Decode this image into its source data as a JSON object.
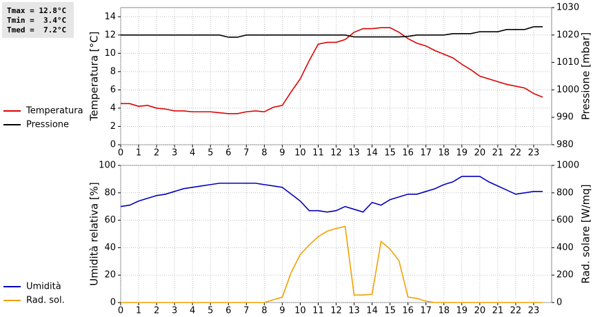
{
  "stats": [
    "Tmax = 12.8°C",
    "Tmin =  3.4°C",
    "Tmed =  7.2°C"
  ],
  "chart_data": [
    {
      "type": "line",
      "ylabel": "Temperatura [°C]",
      "y2label": "Pressione [mbar]",
      "x": [
        0,
        0.5,
        1,
        1.5,
        2,
        2.5,
        3,
        3.5,
        4,
        4.5,
        5,
        5.5,
        6,
        6.5,
        7,
        7.5,
        8,
        8.5,
        9,
        9.5,
        10,
        10.5,
        11,
        11.5,
        12,
        12.5,
        13,
        13.5,
        14,
        14.5,
        15,
        15.5,
        16,
        16.5,
        17,
        17.5,
        18,
        18.5,
        19,
        19.5,
        20,
        20.5,
        21,
        21.5,
        22,
        22.5,
        23,
        23.5
      ],
      "series": [
        {
          "name": "Temperatura",
          "color": "#dd0000",
          "axis": "y",
          "values": [
            4.5,
            4.5,
            4.2,
            4.3,
            4.0,
            3.9,
            3.7,
            3.7,
            3.6,
            3.6,
            3.6,
            3.5,
            3.4,
            3.4,
            3.6,
            3.7,
            3.6,
            4.1,
            4.3,
            5.8,
            7.2,
            9.2,
            11.0,
            11.2,
            11.2,
            11.5,
            12.3,
            12.7,
            12.7,
            12.8,
            12.8,
            12.3,
            11.6,
            11.1,
            10.8,
            10.3,
            9.9,
            9.5,
            8.8,
            8.2,
            7.5,
            7.2,
            6.9,
            6.6,
            6.4,
            6.2,
            5.6,
            5.2
          ]
        },
        {
          "name": "Pressione",
          "color": "#000000",
          "axis": "y2",
          "values": [
            1020,
            1020,
            1020,
            1020,
            1020,
            1020,
            1020,
            1020,
            1020,
            1020,
            1020,
            1020,
            1019.2,
            1019.2,
            1020,
            1020,
            1020,
            1020,
            1020,
            1020,
            1020,
            1020,
            1020,
            1020,
            1020,
            1020,
            1019.3,
            1019.3,
            1019.3,
            1019.3,
            1019.3,
            1019.3,
            1019.5,
            1020,
            1020,
            1020,
            1020,
            1020.5,
            1020.5,
            1020.5,
            1021.2,
            1021.2,
            1021.2,
            1022,
            1022,
            1022,
            1023,
            1023
          ]
        }
      ],
      "xlim": [
        0,
        24
      ],
      "xticks": [
        0,
        1,
        2,
        3,
        4,
        5,
        6,
        7,
        8,
        9,
        10,
        11,
        12,
        13,
        14,
        15,
        16,
        17,
        18,
        19,
        20,
        21,
        22,
        23
      ],
      "ylim": [
        0,
        15
      ],
      "yticks": [
        0,
        2,
        4,
        6,
        8,
        10,
        12,
        14
      ],
      "y2lim": [
        980,
        1030
      ],
      "y2ticks": [
        980,
        990,
        1000,
        1010,
        1020,
        1030
      ],
      "grid": true
    },
    {
      "type": "line",
      "ylabel": "Umidità relativa [%]",
      "y2label": "Rad. solare [W/mq]",
      "x": [
        0,
        0.5,
        1,
        1.5,
        2,
        2.5,
        3,
        3.5,
        4,
        4.5,
        5,
        5.5,
        6,
        6.5,
        7,
        7.5,
        8,
        8.5,
        9,
        9.5,
        10,
        10.5,
        11,
        11.5,
        12,
        12.5,
        13,
        13.5,
        14,
        14.5,
        15,
        15.5,
        16,
        16.5,
        17,
        17.5,
        18,
        18.5,
        19,
        19.5,
        20,
        20.5,
        21,
        21.5,
        22,
        22.5,
        23,
        23.5
      ],
      "series": [
        {
          "name": "Umidità",
          "color": "#0000bb",
          "axis": "y",
          "values": [
            70,
            71,
            74,
            76,
            78,
            79,
            81,
            83,
            84,
            85,
            86,
            87,
            87,
            87,
            87,
            87,
            86,
            85,
            84,
            79,
            74,
            67,
            67,
            66,
            67,
            70,
            68,
            66,
            73,
            71,
            75,
            77,
            79,
            79,
            81,
            83,
            86,
            88,
            92,
            92,
            92,
            88,
            85,
            82,
            79,
            80,
            81,
            81
          ]
        },
        {
          "name": "Rad. sol.",
          "color": "#f0a000",
          "axis": "y2",
          "values": [
            0,
            0,
            0,
            0,
            0,
            0,
            0,
            0,
            0,
            0,
            0,
            0,
            0,
            0,
            0,
            0,
            0,
            20,
            40,
            220,
            350,
            420,
            480,
            520,
            540,
            555,
            55,
            55,
            60,
            445,
            390,
            305,
            40,
            30,
            10,
            0,
            0,
            0,
            0,
            0,
            0,
            0,
            0,
            0,
            0,
            0,
            0,
            0
          ]
        }
      ],
      "xlim": [
        0,
        24
      ],
      "xticks": [
        0,
        1,
        2,
        3,
        4,
        5,
        6,
        7,
        8,
        9,
        10,
        11,
        12,
        13,
        14,
        15,
        16,
        17,
        18,
        19,
        20,
        21,
        22,
        23
      ],
      "ylim": [
        0,
        100
      ],
      "yticks": [
        0,
        20,
        40,
        60,
        80,
        100
      ],
      "y2lim": [
        0,
        1000
      ],
      "y2ticks": [
        0,
        200,
        400,
        600,
        800,
        1000
      ],
      "grid": true
    }
  ]
}
